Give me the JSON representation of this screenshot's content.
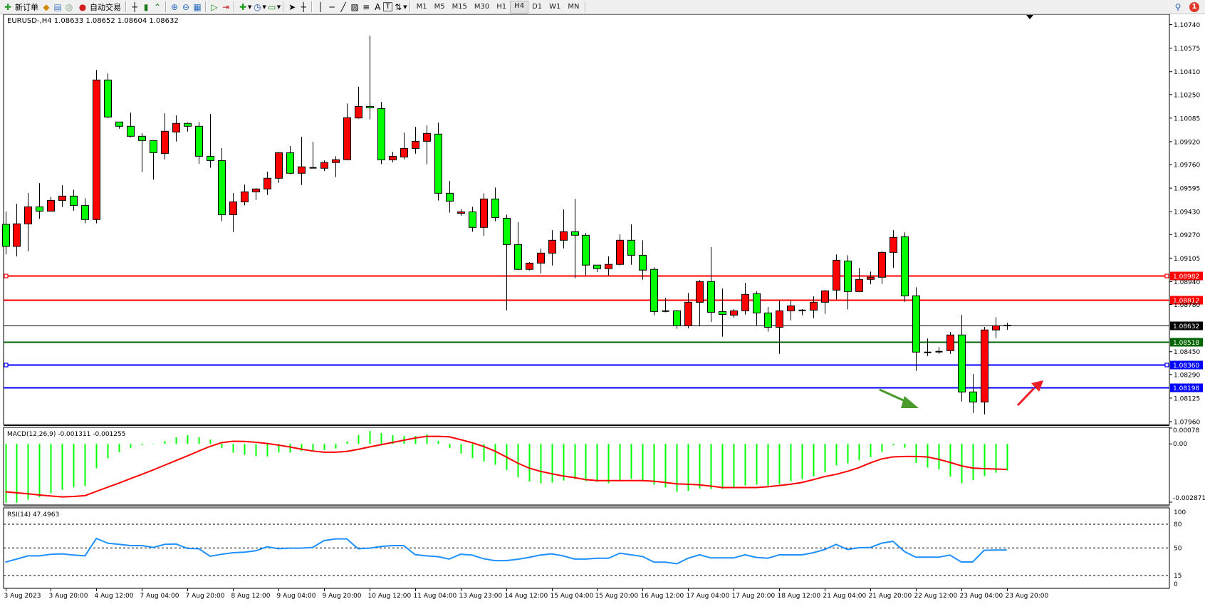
{
  "toolbar": {
    "new_order_label": "新订单",
    "auto_trading_label": "自动交易",
    "icons": [
      "new-order-icon",
      "market-watch-icon",
      "data-window-icon",
      "signals-icon",
      "auto-trading-icon",
      "bar-chart-icon",
      "candlestick-chart-icon",
      "line-chart-icon",
      "zoom-in-icon",
      "zoom-out-icon",
      "tile-windows-icon",
      "autoscroll-icon",
      "chart-shift-icon",
      "indicators-icon",
      "periods-icon",
      "templates-icon",
      "cursor-icon",
      "crosshair-icon",
      "vertical-line-icon",
      "horizontal-line-icon",
      "trendline-icon",
      "fibonacci-icon",
      "text-icon",
      "text-label-icon",
      "arrows-icon"
    ],
    "text_tool_label": "A",
    "text_label_tool": "T",
    "timeframes": [
      "M1",
      "M5",
      "M15",
      "M30",
      "H1",
      "H4",
      "D1",
      "W1",
      "MN"
    ],
    "active_timeframe": "H4",
    "notification_count": "1"
  },
  "chart": {
    "header": "EURUSD-,H4  1.08633 1.08652 1.08604 1.08632",
    "symbol": "EURUSD-",
    "timeframe": "H4",
    "price_ticks": [
      "1.10740",
      "1.10575",
      "1.10410",
      "1.10250",
      "1.10085",
      "1.09920",
      "1.09760",
      "1.09595",
      "1.09430",
      "1.09270",
      "1.09105",
      "1.08940",
      "1.08780",
      "1.08450",
      "1.08290",
      "1.08125",
      "1.07960"
    ],
    "time_labels": [
      "3 Aug 2023",
      "3 Aug 20:00",
      "4 Aug 12:00",
      "7 Aug 04:00",
      "7 Aug 20:00",
      "8 Aug 12:00",
      "9 Aug 04:00",
      "9 Aug 20:00",
      "10 Aug 12:00",
      "11 Aug 04:00",
      "13 Aug 23:00",
      "14 Aug 12:00",
      "15 Aug 04:00",
      "15 Aug 20:00",
      "16 Aug 12:00",
      "17 Aug 04:00",
      "17 Aug 20:00",
      "18 Aug 12:00",
      "21 Aug 04:00",
      "21 Aug 20:00",
      "22 Aug 12:00",
      "23 Aug 04:00",
      "23 Aug 20:00"
    ],
    "colors": {
      "bull": "#ff0000",
      "bear": "#00ff00",
      "outline": "#000000",
      "grid_bg": "#ffffff"
    },
    "levels": [
      {
        "price": "1.08982",
        "color": "#ff0000",
        "label_text": "#ffffff"
      },
      {
        "price": "1.08812",
        "color": "#ff0000",
        "label_text": "#ffffff"
      },
      {
        "price": "1.08632",
        "color": "#000000",
        "label_text": "#ffffff"
      },
      {
        "price": "1.08518",
        "color": "#006400",
        "label_text": "#ffffff"
      },
      {
        "price": "1.08360",
        "color": "#0000ff",
        "label_text": "#ffffff"
      },
      {
        "price": "1.08198",
        "color": "#0000ff",
        "label_text": "#ffffff"
      }
    ],
    "arrows": [
      {
        "direction": "down-right",
        "color": "#4a9a2e"
      },
      {
        "direction": "up-right",
        "color": "#ee1c24"
      }
    ]
  },
  "chart_data": [
    {
      "type": "candlestick",
      "title": "EURUSD-,H4",
      "ylim": [
        1.0796,
        1.1074
      ],
      "fields": [
        "open",
        "high",
        "low",
        "close"
      ],
      "candles": [
        [
          1.09341,
          1.09431,
          1.09132,
          1.09187
        ],
        [
          1.09187,
          1.09486,
          1.09117,
          1.09345
        ],
        [
          1.09345,
          1.09561,
          1.09152,
          1.09464
        ],
        [
          1.09464,
          1.0963,
          1.0938,
          1.09434
        ],
        [
          1.09434,
          1.09534,
          1.09434,
          1.09509
        ],
        [
          1.09509,
          1.09615,
          1.09462,
          1.09539
        ],
        [
          1.09539,
          1.09584,
          1.09437,
          1.09474
        ],
        [
          1.09474,
          1.09524,
          1.09348,
          1.09375
        ],
        [
          1.09375,
          1.10422,
          1.09348,
          1.10352
        ],
        [
          1.10352,
          1.10398,
          1.10086,
          1.10093
        ],
        [
          1.10058,
          1.10058,
          1.10011,
          1.10028
        ],
        [
          1.10028,
          1.10124,
          1.09951,
          1.09958
        ],
        [
          1.09958,
          1.0998,
          1.09707,
          1.09928
        ],
        [
          1.09928,
          1.09928,
          1.09654,
          1.09843
        ],
        [
          1.09838,
          1.10119,
          1.09796,
          1.09993
        ],
        [
          1.09988,
          1.10104,
          1.09921,
          1.10048
        ],
        [
          1.10048,
          1.10054,
          1.09991,
          1.10028
        ],
        [
          1.10028,
          1.10059,
          1.09766,
          1.09818
        ],
        [
          1.09818,
          1.10114,
          1.09737,
          1.09788
        ],
        [
          1.09788,
          1.09875,
          1.09363,
          1.09409
        ],
        [
          1.09409,
          1.09561,
          1.09288,
          1.09499
        ],
        [
          1.09499,
          1.0962,
          1.09474,
          1.09569
        ],
        [
          1.09569,
          1.09595,
          1.09512,
          1.09589
        ],
        [
          1.09589,
          1.0971,
          1.09547,
          1.09664
        ],
        [
          1.09664,
          1.09848,
          1.09632,
          1.09843
        ],
        [
          1.09843,
          1.0989,
          1.09692,
          1.09699
        ],
        [
          1.09699,
          1.09955,
          1.09617,
          1.09744
        ],
        [
          1.09737,
          1.0992,
          1.09737,
          1.09737
        ],
        [
          1.09734,
          1.09789,
          1.09714,
          1.09774
        ],
        [
          1.09774,
          1.09818,
          1.09672,
          1.09794
        ],
        [
          1.09794,
          1.10187,
          1.0979,
          1.10088
        ],
        [
          1.10086,
          1.10304,
          1.10081,
          1.10167
        ],
        [
          1.10167,
          1.10663,
          1.10076,
          1.10157
        ],
        [
          1.10152,
          1.10199,
          1.09762,
          1.09793
        ],
        [
          1.09793,
          1.0985,
          1.09776,
          1.09818
        ],
        [
          1.09813,
          1.09984,
          1.09796,
          1.09873
        ],
        [
          1.09873,
          1.10024,
          1.09836,
          1.09923
        ],
        [
          1.09923,
          1.10034,
          1.09762,
          1.09978
        ],
        [
          1.09973,
          1.10053,
          1.09508,
          1.09559
        ],
        [
          1.09559,
          1.09645,
          1.09423,
          1.09504
        ],
        [
          1.09419,
          1.09449,
          1.09402,
          1.09429
        ],
        [
          1.09429,
          1.09464,
          1.0929,
          1.0932
        ],
        [
          1.0932,
          1.09559,
          1.0926,
          1.09519
        ],
        [
          1.09519,
          1.09599,
          1.09363,
          1.09389
        ],
        [
          1.09384,
          1.09409,
          1.08739,
          1.092
        ],
        [
          1.092,
          1.09356,
          1.0902,
          1.09026
        ],
        [
          1.09026,
          1.09077,
          1.09019,
          1.0907
        ],
        [
          1.0907,
          1.09172,
          1.08998,
          1.0914
        ],
        [
          1.0914,
          1.09301,
          1.09053,
          1.0923
        ],
        [
          1.0923,
          1.09446,
          1.09173,
          1.0929
        ],
        [
          1.0929,
          1.09521,
          1.08964,
          1.09265
        ],
        [
          1.09265,
          1.0928,
          1.08984,
          1.09056
        ],
        [
          1.09056,
          1.09056,
          1.09008,
          1.09031
        ],
        [
          1.09031,
          1.09117,
          1.08984,
          1.09061
        ],
        [
          1.09061,
          1.09271,
          1.09053,
          1.0923
        ],
        [
          1.0923,
          1.09341,
          1.09058,
          1.09125
        ],
        [
          1.09125,
          1.0923,
          1.08954,
          1.09021
        ],
        [
          1.09026,
          1.09041,
          1.08704,
          1.08731
        ],
        [
          1.08734,
          1.08826,
          1.08726,
          1.08734
        ],
        [
          1.08736,
          1.08741,
          1.08611,
          1.08631
        ],
        [
          1.08631,
          1.08861,
          1.08614,
          1.08796
        ],
        [
          1.08796,
          1.08951,
          1.08627,
          1.08941
        ],
        [
          1.08941,
          1.09182,
          1.08659,
          1.08726
        ],
        [
          1.08731,
          1.08892,
          1.08555,
          1.08711
        ],
        [
          1.08706,
          1.08747,
          1.08689,
          1.08736
        ],
        [
          1.08736,
          1.08932,
          1.08709,
          1.08851
        ],
        [
          1.08856,
          1.08872,
          1.08635,
          1.08721
        ],
        [
          1.08721,
          1.08763,
          1.0859,
          1.08621
        ],
        [
          1.08621,
          1.08809,
          1.08435,
          1.08736
        ],
        [
          1.08736,
          1.08809,
          1.08669,
          1.08771
        ],
        [
          1.08739,
          1.08748,
          1.08704,
          1.08739
        ],
        [
          1.08741,
          1.08837,
          1.08684,
          1.08796
        ],
        [
          1.08796,
          1.08881,
          1.08714,
          1.08876
        ],
        [
          1.08881,
          1.0913,
          1.08816,
          1.0909
        ],
        [
          1.09085,
          1.09125,
          1.08746,
          1.08871
        ],
        [
          1.08871,
          1.09036,
          1.08866,
          1.08956
        ],
        [
          1.08956,
          1.09011,
          1.08921,
          1.08971
        ],
        [
          1.08971,
          1.09155,
          1.08924,
          1.09145
        ],
        [
          1.09145,
          1.09301,
          1.09038,
          1.0925
        ],
        [
          1.09255,
          1.09285,
          1.08799,
          1.08841
        ],
        [
          1.08841,
          1.08901,
          1.08315,
          1.08447
        ],
        [
          1.08445,
          1.08542,
          1.0842,
          1.08445
        ],
        [
          1.0845,
          1.08482,
          1.08435,
          1.0845
        ],
        [
          1.08457,
          1.08588,
          1.08435,
          1.08567
        ],
        [
          1.08567,
          1.08708,
          1.08101,
          1.08168
        ],
        [
          1.08168,
          1.08294,
          1.08021,
          1.08098
        ],
        [
          1.08098,
          1.08623,
          1.08011,
          1.08602
        ],
        [
          1.08602,
          1.08691,
          1.08545,
          1.08632
        ],
        [
          1.08633,
          1.08652,
          1.08604,
          1.08632
        ]
      ]
    },
    {
      "type": "bar+line",
      "title": "MACD(12,26,9) -0.001311 -0.001255",
      "ylim": [
        -0.002871,
        0.00078
      ],
      "tick_labels": [
        "0.00078",
        "0.00",
        "-0.002871"
      ],
      "colors": {
        "histogram": "#00ff00",
        "signal": "#ff0000"
      },
      "histogram": [
        -0.0029,
        -0.0029,
        -0.00275,
        -0.00263,
        -0.00243,
        -0.00226,
        -0.00213,
        -0.00208,
        -0.0012,
        -0.00071,
        -0.00041,
        -0.0002,
        -6e-05,
        -2e-05,
        0.00014,
        0.00033,
        0.00043,
        0.00033,
        0.00021,
        -0.0002,
        -0.00043,
        -0.00054,
        -0.00061,
        -0.00062,
        -0.00042,
        -0.00043,
        -0.00035,
        -0.00033,
        -0.0003,
        -0.00023,
        0.00012,
        0.00043,
        0.00064,
        0.00054,
        0.00043,
        0.00039,
        0.00039,
        0.00047,
        0.00015,
        -0.0002,
        -0.00048,
        -0.0007,
        -0.00087,
        -0.00103,
        -0.00129,
        -0.00164,
        -0.00185,
        -0.00194,
        -0.00191,
        -0.00181,
        -0.00173,
        -0.00184,
        -0.00187,
        -0.00194,
        -0.00178,
        -0.00173,
        -0.0018,
        -0.00201,
        -0.00215,
        -0.00236,
        -0.00232,
        -0.0022,
        -0.00222,
        -0.00222,
        -0.00214,
        -0.00205,
        -0.00201,
        -0.00205,
        -0.00199,
        -0.00184,
        -0.00173,
        -0.0016,
        -0.0014,
        -0.00106,
        -0.00096,
        -0.00081,
        -0.00065,
        -0.00039,
        -7e-05,
        -0.00019,
        -0.00094,
        -0.00117,
        -0.00125,
        -0.00161,
        -0.00194,
        -0.00178,
        -0.00159,
        -0.00142,
        -0.001311
      ],
      "signal": [
        -0.00236,
        -0.00241,
        -0.00246,
        -0.00252,
        -0.00257,
        -0.00261,
        -0.00259,
        -0.00255,
        -0.00234,
        -0.00213,
        -0.00193,
        -0.00171,
        -0.0015,
        -0.00128,
        -0.00105,
        -0.00082,
        -0.00059,
        -0.00035,
        -0.00012,
        6e-05,
        0.00013,
        0.00012,
        8e-05,
        2e-05,
        -6e-05,
        -0.00015,
        -0.00026,
        -0.00035,
        -0.00041,
        -0.00041,
        -0.00037,
        -0.00027,
        -0.00015,
        -4e-05,
        7e-05,
        0.00018,
        0.00029,
        0.00037,
        0.00037,
        0.00035,
        0.00021,
        6e-05,
        -0.00012,
        -0.00035,
        -0.00064,
        -0.00094,
        -0.00119,
        -0.00135,
        -0.00147,
        -0.00158,
        -0.00166,
        -0.00176,
        -0.00181,
        -0.00181,
        -0.00181,
        -0.00181,
        -0.00181,
        -0.00184,
        -0.0019,
        -0.00197,
        -0.00199,
        -0.00202,
        -0.00208,
        -0.00215,
        -0.00215,
        -0.00215,
        -0.00215,
        -0.00211,
        -0.00205,
        -0.00199,
        -0.0019,
        -0.00176,
        -0.00161,
        -0.0015,
        -0.00135,
        -0.00117,
        -0.00094,
        -0.00074,
        -0.00064,
        -0.00062,
        -0.00062,
        -0.00064,
        -0.00076,
        -0.00091,
        -0.00108,
        -0.00119,
        -0.00122,
        -0.00124,
        -0.001255
      ]
    },
    {
      "type": "line",
      "title": "RSI(14) 47.4963",
      "ylim": [
        0,
        100
      ],
      "tick_labels": [
        "100",
        "80",
        "50",
        "15",
        "0"
      ],
      "levels": [
        80,
        50,
        15
      ],
      "color": "#1e90ff",
      "values": [
        32,
        36,
        40,
        40,
        42,
        42.5,
        41,
        40,
        62,
        56,
        54.5,
        53,
        53,
        50.6,
        54.5,
        55,
        49.4,
        49,
        39.5,
        42,
        44,
        44.6,
        46.4,
        51.5,
        49,
        49.7,
        49.7,
        50.6,
        59.3,
        61.4,
        61.4,
        49,
        49.7,
        51.8,
        53,
        53,
        41.6,
        40,
        39,
        36,
        42,
        41,
        36.5,
        34,
        34,
        35.6,
        38,
        41,
        42.5,
        40,
        36,
        36,
        37,
        37,
        43.4,
        41.3,
        39.2,
        32,
        32,
        30,
        37,
        41.3,
        37.4,
        37.4,
        37.4,
        41.3,
        38,
        37,
        41.3,
        41.3,
        41.3,
        44,
        48,
        54.5,
        48,
        50.3,
        50.6,
        56,
        58.4,
        45.5,
        38.3,
        38.3,
        38.3,
        41,
        32.3,
        32.3,
        47,
        47.3,
        47.4963
      ]
    }
  ]
}
